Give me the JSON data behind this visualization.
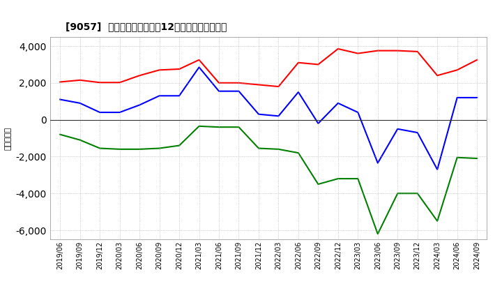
{
  "title": "[9057]  キャッシュフローの12か月移動合計の推移",
  "ylabel": "（百万円）",
  "xlabels": [
    "2019/06",
    "2019/09",
    "2019/12",
    "2020/03",
    "2020/06",
    "2020/09",
    "2020/12",
    "2021/03",
    "2021/06",
    "2021/09",
    "2021/12",
    "2022/03",
    "2022/06",
    "2022/09",
    "2022/12",
    "2023/03",
    "2023/06",
    "2023/09",
    "2023/12",
    "2024/03",
    "2024/06",
    "2024/09"
  ],
  "operating_cf": [
    2050,
    2150,
    2020,
    2020,
    2400,
    2700,
    2750,
    3250,
    2000,
    2000,
    1900,
    1800,
    3100,
    3000,
    3850,
    3600,
    3750,
    3750,
    3700,
    2400,
    2700,
    3250
  ],
  "investing_cf": [
    -800,
    -1100,
    -1550,
    -1600,
    -1600,
    -1550,
    -1400,
    -350,
    -400,
    -400,
    -1550,
    -1600,
    -1800,
    -3500,
    -3200,
    -3200,
    -6200,
    -4000,
    -4000,
    -5500,
    -2050,
    -2100
  ],
  "free_cf": [
    1100,
    900,
    400,
    400,
    800,
    1300,
    1300,
    2850,
    1550,
    1550,
    300,
    200,
    1500,
    -200,
    900,
    400,
    -2350,
    -500,
    -700,
    -2700,
    1200,
    1200
  ],
  "ylim": [
    -6500,
    4500
  ],
  "yticks": [
    -6000,
    -4000,
    -2000,
    0,
    2000,
    4000
  ],
  "color_operating": "#ff0000",
  "color_investing": "#008000",
  "color_free": "#0000ff",
  "bg_color": "#ffffff",
  "plot_bg_color": "#ffffff"
}
